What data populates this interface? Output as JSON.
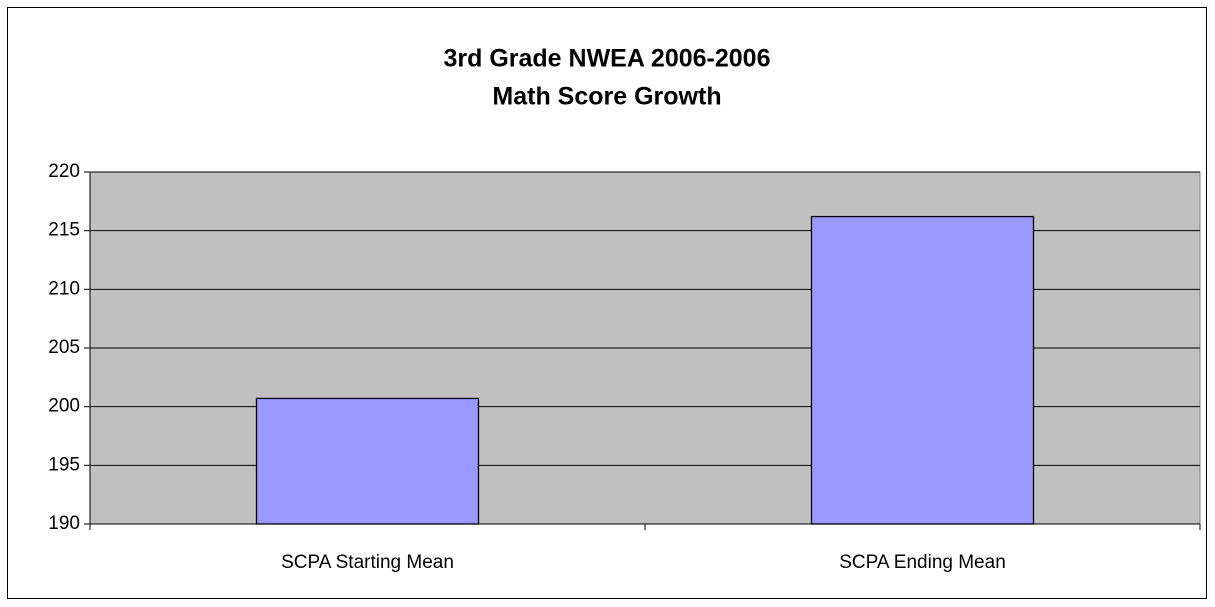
{
  "chart_data": {
    "type": "bar",
    "title": [
      "3rd Grade NWEA 2006-2006",
      "Math Score Growth"
    ],
    "categories": [
      "SCPA Starting Mean",
      "SCPA Ending Mean"
    ],
    "values": [
      200.7,
      216.2
    ],
    "color": "#9999ff",
    "ylim": [
      190,
      220
    ],
    "yticks": [
      190,
      195,
      200,
      205,
      210,
      215,
      220
    ],
    "grid": true
  }
}
